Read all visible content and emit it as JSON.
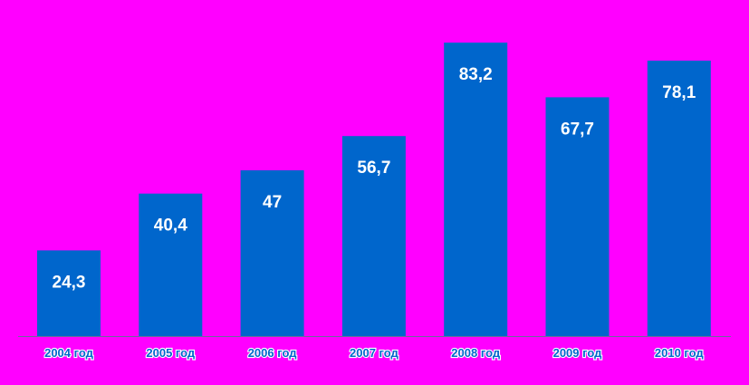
{
  "chart_data": {
    "type": "bar",
    "categories": [
      "2004 год",
      "2005 год",
      "2006 год",
      "2007 год",
      "2008 год",
      "2009 год",
      "2010 год"
    ],
    "values": [
      24.3,
      40.4,
      47,
      56.7,
      83.2,
      67.7,
      78.1
    ],
    "value_labels": [
      "24,3",
      "40,4",
      "47",
      "56,7",
      "83,2",
      "67,7",
      "78,1"
    ],
    "ylim": [
      0,
      90
    ],
    "grid": false,
    "legend": "none",
    "colors": {
      "background": "#ff00ff",
      "bar": "#0066cc",
      "value_label": "#ffffff",
      "tick_label": "#0066cc",
      "axis": "#6b6b9a"
    }
  }
}
